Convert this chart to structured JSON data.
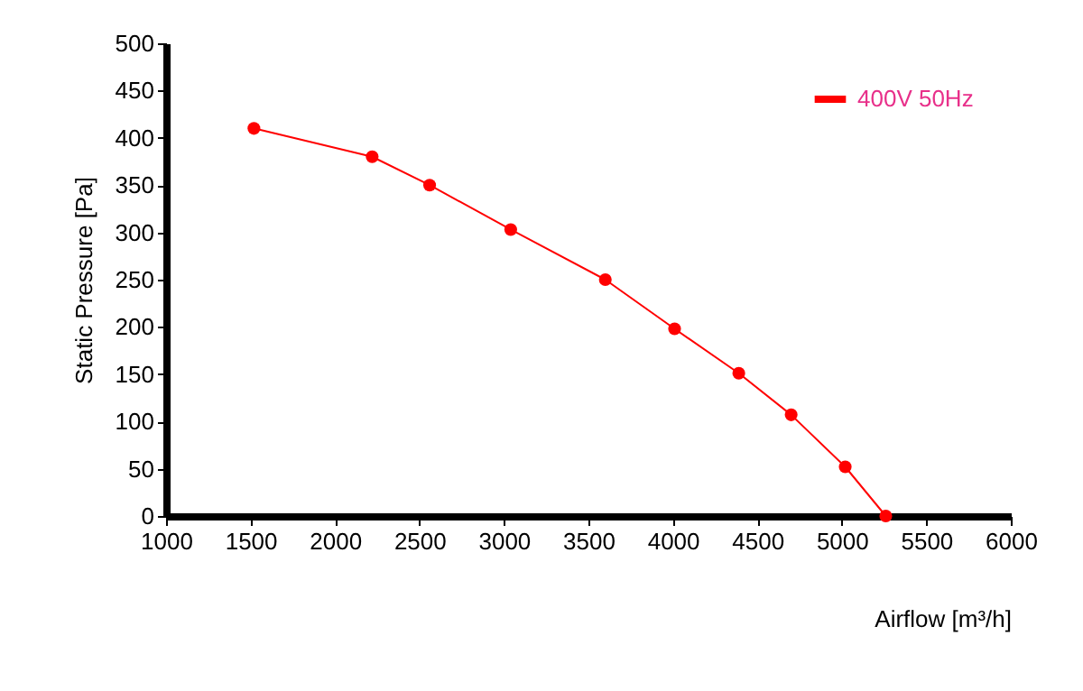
{
  "chart_data": {
    "type": "line",
    "xlabel": "Airflow [m³/h]",
    "ylabel": "Static Pressure [Pa]",
    "x": [
      1520,
      2220,
      2560,
      3040,
      3600,
      4010,
      4390,
      4700,
      5020,
      5260
    ],
    "series": [
      {
        "name": "400V 50Hz",
        "color": "#ff0000",
        "values": [
          410,
          380,
          350,
          303,
          250,
          198,
          151,
          107,
          52,
          0
        ]
      }
    ],
    "xlim": [
      1000,
      6000
    ],
    "xticks": [
      1000,
      1500,
      2000,
      2500,
      3000,
      3500,
      4000,
      4500,
      5000,
      5500,
      6000
    ],
    "ylim": [
      0,
      500
    ],
    "yticks": [
      0,
      50,
      100,
      150,
      200,
      250,
      300,
      350,
      400,
      450,
      500
    ],
    "marker": "circle",
    "grid": false,
    "legend": "top right"
  }
}
